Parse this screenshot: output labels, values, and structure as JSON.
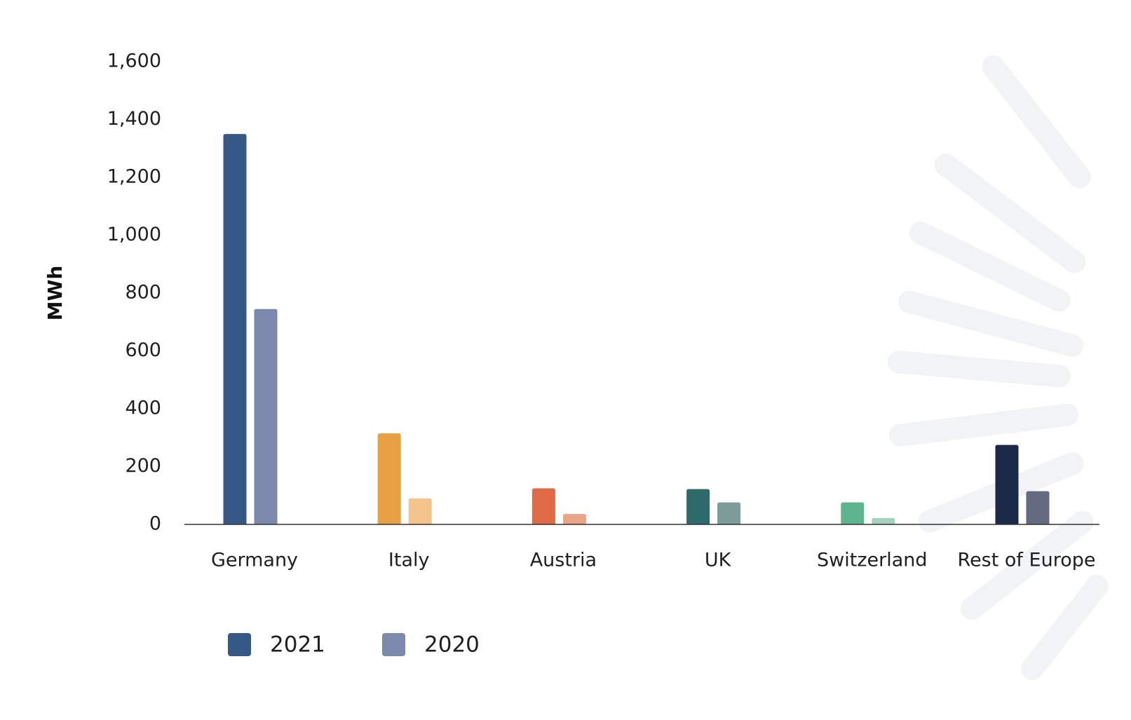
{
  "chart_data": {
    "type": "bar",
    "ylabel": "MWh",
    "xlabel": "",
    "ylim": [
      0,
      1600
    ],
    "yticks": [
      0,
      200,
      400,
      600,
      800,
      1000,
      1200,
      1400,
      1600
    ],
    "ytick_labels": [
      "0",
      "200",
      "400",
      "600",
      "800",
      "1,000",
      "1,200",
      "1,400",
      "1,600"
    ],
    "grid": false,
    "legend_position": "bottom-left",
    "categories": [
      "Germany",
      "Italy",
      "Austria",
      "UK",
      "Switzerland",
      "Rest of Europe"
    ],
    "series": [
      {
        "name": "2021",
        "values": [
          1350,
          315,
          125,
          122,
          76,
          275
        ],
        "colors": [
          "#365886",
          "#E8A045",
          "#DF6A45",
          "#2D6A69",
          "#5DB58F",
          "#1A2A48"
        ]
      },
      {
        "name": "2020",
        "values": [
          745,
          90,
          36,
          76,
          22,
          115
        ],
        "colors": [
          "#7C89AD",
          "#F2C48C",
          "#EBA486",
          "#7E9B9C",
          "#A2D3BE",
          "#646A80"
        ]
      }
    ],
    "legend": [
      {
        "label": "2021",
        "color": "#365886"
      },
      {
        "label": "2020",
        "color": "#7C89AD"
      }
    ],
    "background_decoration": "light grey sunburst rays on the right edge"
  }
}
